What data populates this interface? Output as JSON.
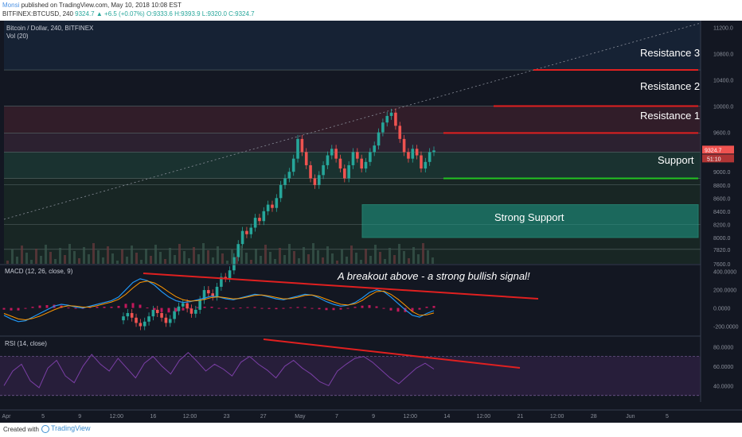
{
  "header": {
    "user": "Monsi",
    "published": "published on TradingView.com, May 10, 2018 10:08 EST",
    "symbol_line": "BITFINEX:BTCUSD, 240",
    "price": "9324.7",
    "change": "+6.5 (+0.07%)",
    "ohlc": "O:9333.6 H:9393.9 L:9320.0 C:9324.7"
  },
  "footer": {
    "created_with": "Created with",
    "brand": "TradingView"
  },
  "panes": {
    "price_title": "Bitcoin / Dollar, 240, BITFINEX",
    "vol_title": "Vol (20)",
    "macd_title": "MACD (12, 26, close, 9)",
    "rsi_title": "RSI (14, close)"
  },
  "annotations": {
    "resistance3": "Resistance 3",
    "resistance2": "Resistance 2",
    "resistance1": "Resistance 1",
    "support": "Support",
    "strong_support": "Strong Support",
    "macd_note": "A breakout above - a strong bullish signal!"
  },
  "last_price": {
    "value": "9324.7",
    "countdown": "51:10"
  },
  "colors": {
    "bg": "#131722",
    "up": "#26a69a",
    "down": "#ef5350",
    "resistance": "#e02020",
    "support": "#22c322",
    "strong_support": "#1f9e8a",
    "macd": "#2196f3",
    "signal": "#ff9800",
    "rsi": "#7b3fa6"
  },
  "chart_data": [
    {
      "type": "candlestick",
      "title": "Bitcoin / Dollar, 240, BITFINEX",
      "ylim": [
        7600,
        11300
      ],
      "y_ticks": [
        11200,
        10800,
        10400,
        10000,
        9600,
        9200,
        9000,
        8800,
        8600,
        8400,
        8200,
        8000,
        7820,
        7600
      ],
      "x_ticks": [
        "Apr",
        "5",
        "9",
        "12:00",
        "16",
        "12:00",
        "23",
        "27",
        "May",
        "7",
        "9",
        "12:00",
        "14",
        "12:00",
        "21",
        "12:00",
        "28",
        "Jun",
        "5"
      ],
      "levels": [
        {
          "name": "Resistance 3",
          "value": 10550
        },
        {
          "name": "Resistance 2",
          "value": 10000
        },
        {
          "name": "Resistance 1",
          "value": 9590
        },
        {
          "name": "Support",
          "value": 8900
        },
        {
          "name": "Strong Support",
          "range": [
            8000,
            8500
          ]
        }
      ],
      "close_series": [
        6800,
        6850,
        6780,
        6700,
        6650,
        6720,
        6800,
        6900,
        6850,
        6780,
        6700,
        6760,
        6880,
        6950,
        7000,
        6920,
        6840,
        6900,
        7050,
        7200,
        7150,
        7100,
        7250,
        7400,
        7380,
        7500,
        7700,
        7900,
        8100,
        8050,
        8150,
        8300,
        8250,
        8400,
        8500,
        8450,
        8600,
        8800,
        8900,
        9000,
        9200,
        9500,
        9300,
        9100,
        8900,
        8800,
        8950,
        9100,
        9250,
        9350,
        9200,
        9050,
        8900,
        9100,
        9300,
        9200,
        9050,
        9150,
        9300,
        9400,
        9600,
        9750,
        9850,
        9900,
        9700,
        9500,
        9300,
        9200,
        9350,
        9250,
        9050,
        9150,
        9300,
        9324.7
      ]
    },
    {
      "type": "line",
      "title": "MACD (12, 26, close, 9)",
      "ylim": [
        -300,
        450
      ],
      "y_ticks": [
        400,
        200,
        0,
        -200
      ],
      "series": [
        {
          "name": "MACD",
          "values": [
            -80,
            -120,
            -150,
            -140,
            -100,
            -60,
            -20,
            20,
            40,
            30,
            10,
            0,
            20,
            40,
            60,
            80,
            120,
            200,
            280,
            320,
            300,
            250,
            180,
            120,
            80,
            60,
            70,
            90,
            110,
            130,
            120,
            100,
            90,
            110,
            130,
            150,
            140,
            120,
            100,
            90,
            110,
            130,
            150,
            140,
            110,
            70,
            40,
            20,
            30,
            60,
            110,
            170,
            200,
            180,
            120,
            50,
            -20,
            -80,
            -100,
            -60,
            -30
          ]
        },
        {
          "name": "Signal",
          "values": [
            -60,
            -90,
            -120,
            -130,
            -115,
            -90,
            -55,
            -20,
            10,
            25,
            20,
            10,
            10,
            25,
            45,
            65,
            95,
            150,
            220,
            280,
            295,
            275,
            230,
            175,
            125,
            90,
            75,
            80,
            95,
            115,
            122,
            112,
            100,
            105,
            120,
            138,
            142,
            132,
            115,
            100,
            102,
            118,
            138,
            142,
            126,
            96,
            66,
            40,
            32,
            46,
            82,
            136,
            180,
            185,
            150,
            95,
            30,
            -40,
            -80,
            -75,
            -55
          ]
        }
      ]
    },
    {
      "type": "line",
      "title": "RSI (14, close)",
      "ylim": [
        20,
        90
      ],
      "y_ticks": [
        80,
        60,
        40
      ],
      "bands": [
        30,
        70
      ],
      "series": [
        {
          "name": "RSI",
          "values": [
            40,
            55,
            62,
            45,
            38,
            58,
            66,
            50,
            43,
            60,
            72,
            62,
            55,
            68,
            58,
            48,
            63,
            70,
            60,
            52,
            66,
            74,
            65,
            55,
            62,
            57,
            50,
            64,
            70,
            62,
            56,
            48,
            60,
            66,
            58,
            52,
            44,
            40,
            55,
            62,
            68,
            70,
            64,
            56,
            48,
            42,
            50,
            58,
            63,
            57
          ]
        }
      ]
    }
  ]
}
